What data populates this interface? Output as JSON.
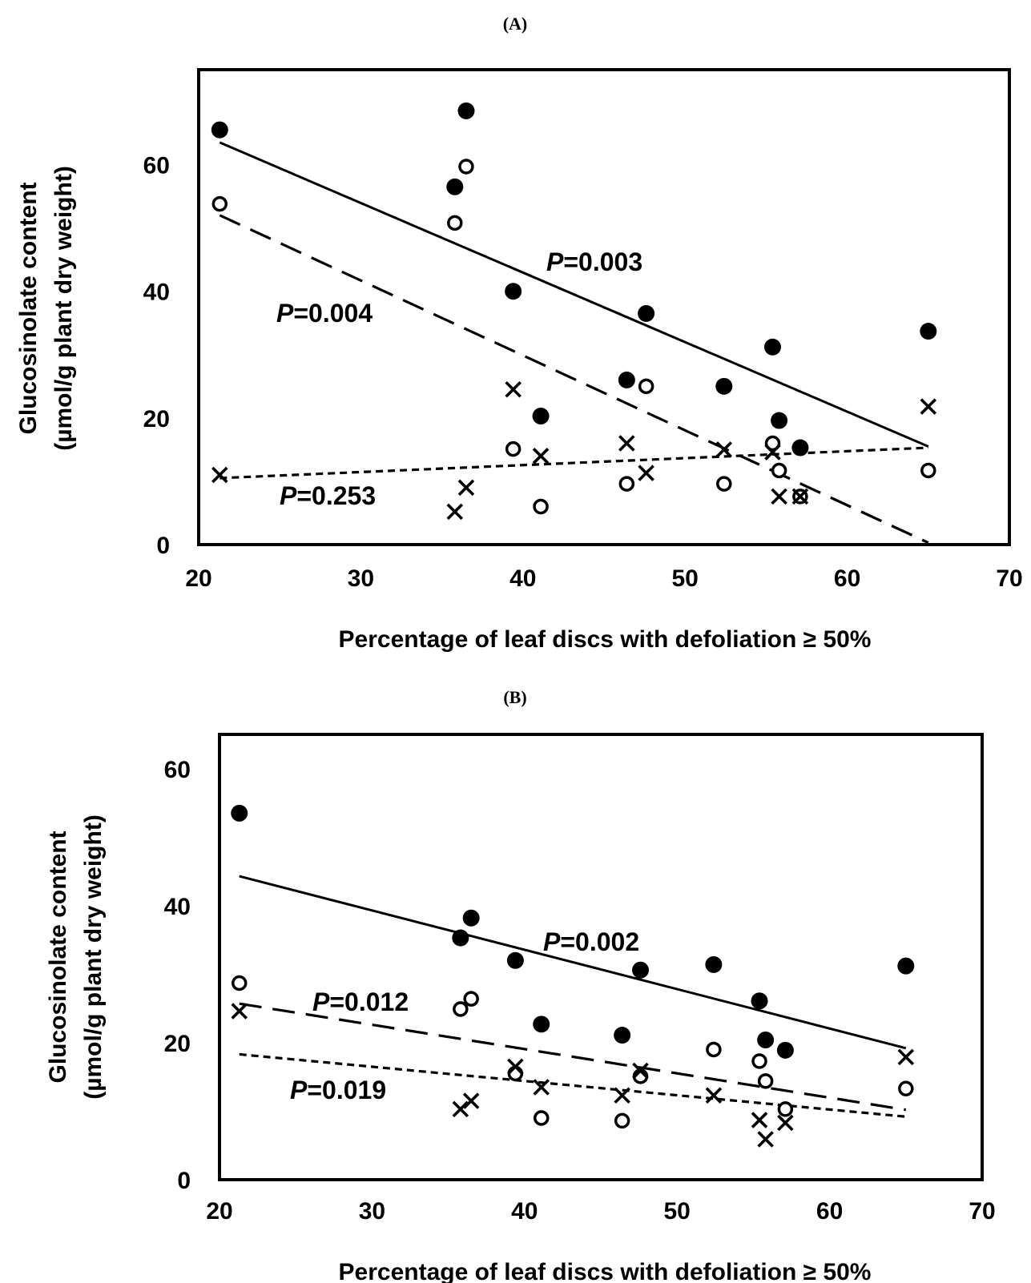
{
  "chart_data": [
    {
      "type": "scatter",
      "panel_label": "(A)",
      "xlabel": "Percentage of leaf discs with defoliation ≥ 50%",
      "ylabel_line1": "Glucosinolate content",
      "ylabel_line2": "(µmol/g  plant dry weight)",
      "xlim": [
        20,
        70
      ],
      "ylim": [
        0,
        75
      ],
      "xticks": [
        20,
        30,
        40,
        50,
        60,
        70
      ],
      "yticks": [
        0,
        20,
        40,
        60
      ],
      "grid": false,
      "series": [
        {
          "marker": "filled-circle",
          "points": [
            [
              21.3,
              65.5
            ],
            [
              35.8,
              56.5
            ],
            [
              36.5,
              68.5
            ],
            [
              39.4,
              40
            ],
            [
              41.1,
              20.3
            ],
            [
              46.4,
              26
            ],
            [
              47.6,
              36.5
            ],
            [
              52.4,
              25
            ],
            [
              55.4,
              31.2
            ],
            [
              55.8,
              19.6
            ],
            [
              57.1,
              15.3
            ],
            [
              65,
              33.7
            ]
          ],
          "trend": {
            "style": "solid",
            "x": [
              21.3,
              65
            ],
            "y": [
              63.5,
              15.5
            ],
            "p_prefix": "P",
            "p_value": "=0.003"
          }
        },
        {
          "marker": "open-circle",
          "points": [
            [
              21.3,
              53.8
            ],
            [
              35.8,
              50.8
            ],
            [
              36.5,
              59.7
            ],
            [
              39.4,
              15.1
            ],
            [
              41.1,
              6
            ],
            [
              46.4,
              9.6
            ],
            [
              47.6,
              25
            ],
            [
              52.4,
              9.6
            ],
            [
              55.4,
              16
            ],
            [
              55.8,
              11.7
            ],
            [
              57.1,
              7.6
            ],
            [
              65,
              11.7
            ]
          ],
          "trend": {
            "style": "long-dash",
            "x": [
              21.3,
              65
            ],
            "y": [
              52,
              0.3
            ],
            "p_prefix": "P",
            "p_value": "=0.004"
          }
        },
        {
          "marker": "x",
          "points": [
            [
              21.3,
              11
            ],
            [
              35.8,
              5.2
            ],
            [
              36.5,
              9
            ],
            [
              39.4,
              24.5
            ],
            [
              41.1,
              14
            ],
            [
              46.4,
              16
            ],
            [
              47.6,
              11.3
            ],
            [
              52.4,
              15
            ],
            [
              55.4,
              14.6
            ],
            [
              55.8,
              7.6
            ],
            [
              57.1,
              7.6
            ],
            [
              65,
              21.8
            ]
          ],
          "trend": {
            "style": "short-dash",
            "x": [
              21.3,
              65
            ],
            "y": [
              10.5,
              15.3
            ],
            "p_prefix": "P",
            "p_value": "=0.253"
          }
        }
      ]
    },
    {
      "type": "scatter",
      "panel_label": "(B)",
      "xlabel": "Percentage of leaf discs with defoliation ≥ 50%",
      "ylabel_line1": "Glucosinolate content",
      "ylabel_line2": "(µmol/g  plant dry weight)",
      "xlim": [
        20,
        70
      ],
      "ylim": [
        0,
        65
      ],
      "xticks": [
        20,
        30,
        40,
        50,
        60,
        70
      ],
      "yticks": [
        0,
        20,
        40,
        60
      ],
      "grid": false,
      "series": [
        {
          "marker": "filled-circle",
          "points": [
            [
              21.3,
              53.5
            ],
            [
              35.8,
              35.3
            ],
            [
              36.5,
              38.2
            ],
            [
              39.4,
              32
            ],
            [
              41.1,
              22.7
            ],
            [
              46.4,
              21.1
            ],
            [
              47.6,
              30.6
            ],
            [
              52.4,
              31.4
            ],
            [
              55.4,
              26.1
            ],
            [
              55.8,
              20.4
            ],
            [
              57.1,
              18.9
            ],
            [
              65,
              31.2
            ]
          ],
          "trend": {
            "style": "solid",
            "x": [
              21.3,
              65
            ],
            "y": [
              44.3,
              19.2
            ],
            "p_prefix": "P",
            "p_value": "=0.002"
          }
        },
        {
          "marker": "open-circle",
          "points": [
            [
              21.3,
              28.7
            ],
            [
              35.8,
              24.9
            ],
            [
              36.5,
              26.4
            ],
            [
              39.4,
              15.5
            ],
            [
              41.1,
              9
            ],
            [
              46.4,
              8.6
            ],
            [
              47.6,
              15.1
            ],
            [
              52.4,
              19
            ],
            [
              55.4,
              17.3
            ],
            [
              55.8,
              14.4
            ],
            [
              57.1,
              10.3
            ],
            [
              65,
              13.3
            ]
          ],
          "trend": {
            "style": "long-dash",
            "x": [
              21.3,
              65
            ],
            "y": [
              25.7,
              10.2
            ],
            "p_prefix": "P",
            "p_value": "=0.012"
          }
        },
        {
          "marker": "x",
          "points": [
            [
              21.3,
              24.6
            ],
            [
              35.8,
              10.3
            ],
            [
              36.5,
              11.5
            ],
            [
              39.4,
              16.5
            ],
            [
              41.1,
              13.5
            ],
            [
              46.4,
              12.3
            ],
            [
              47.6,
              15.9
            ],
            [
              52.4,
              12.3
            ],
            [
              55.4,
              8.7
            ],
            [
              55.8,
              5.9
            ],
            [
              57.1,
              8.3
            ],
            [
              65,
              17.9
            ]
          ],
          "trend": {
            "style": "short-dash",
            "x": [
              21.3,
              65
            ],
            "y": [
              18.3,
              9.2
            ],
            "p_prefix": "P",
            "p_value": "=0.019"
          }
        }
      ]
    }
  ]
}
